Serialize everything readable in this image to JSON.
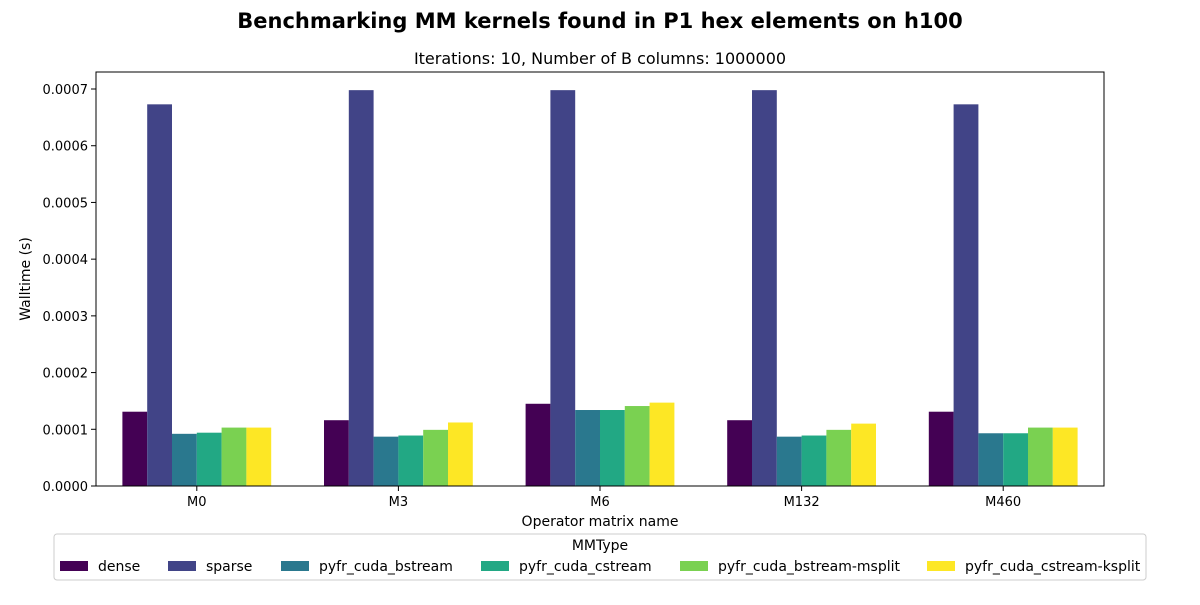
{
  "chart_data": {
    "type": "bar",
    "title": "Benchmarking MM kernels found in P1 hex elements on h100",
    "subtitle": "Iterations: 10, Number of B columns: 1000000",
    "xlabel": "Operator matrix name",
    "ylabel": "Walltime (s)",
    "categories": [
      "M0",
      "M3",
      "M6",
      "M132",
      "M460"
    ],
    "ylim": [
      0,
      0.00073
    ],
    "yticks": [
      "0.0000",
      "0.0001",
      "0.0002",
      "0.0003",
      "0.0004",
      "0.0005",
      "0.0006",
      "0.0007"
    ],
    "ytick_values": [
      0,
      0.0001,
      0.0002,
      0.0003,
      0.0004,
      0.0005,
      0.0006,
      0.0007
    ],
    "legend_title": "MMType",
    "legend_position": "bottom-center",
    "grid": false,
    "series": [
      {
        "name": "dense",
        "color": "#440154",
        "values": [
          0.000131,
          0.000116,
          0.000145,
          0.000116,
          0.000131
        ]
      },
      {
        "name": "sparse",
        "color": "#414487",
        "values": [
          0.000673,
          0.000698,
          0.000698,
          0.000698,
          0.000673
        ]
      },
      {
        "name": "pyfr_cuda_bstream",
        "color": "#2a788e",
        "values": [
          9.2e-05,
          8.7e-05,
          0.000134,
          8.7e-05,
          9.3e-05
        ]
      },
      {
        "name": "pyfr_cuda_cstream",
        "color": "#22a884",
        "values": [
          9.4e-05,
          8.9e-05,
          0.000134,
          8.9e-05,
          9.3e-05
        ]
      },
      {
        "name": "pyfr_cuda_bstream-msplit",
        "color": "#7ad151",
        "values": [
          0.000103,
          9.9e-05,
          0.000141,
          9.9e-05,
          0.000103
        ]
      },
      {
        "name": "pyfr_cuda_cstream-ksplit",
        "color": "#fde725",
        "values": [
          0.000103,
          0.000112,
          0.000147,
          0.00011,
          0.000103
        ]
      }
    ]
  }
}
